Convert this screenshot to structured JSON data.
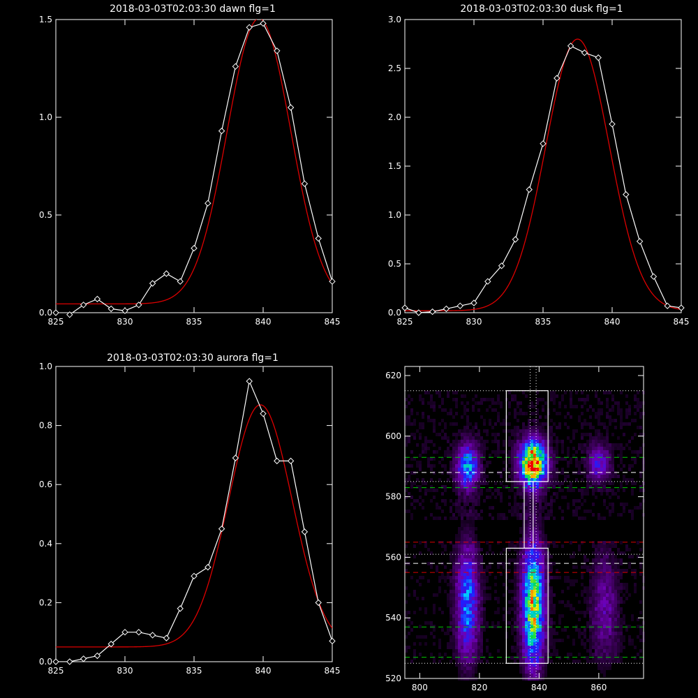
{
  "figure": {
    "colors": {
      "background": "#000000",
      "axes": "#ffffff",
      "data_line": "#ffffff",
      "fit_line": "#dd0000",
      "green_dash": "#00cc00",
      "red_dash": "#dd0000",
      "white_dash": "#ffffff"
    }
  },
  "chart_data": [
    {
      "type": "line",
      "title": "2018-03-03T02:03:30 dawn flg=1",
      "xlabel": "",
      "ylabel": "",
      "xlim": [
        825,
        845
      ],
      "ylim": [
        0,
        1.5
      ],
      "xticks": [
        "825",
        "830",
        "835",
        "840",
        "845"
      ],
      "yticks": [
        "0.0",
        "0.5",
        "1.0",
        "1.5"
      ],
      "series": [
        {
          "marker": "diamond",
          "x": [
            825,
            826,
            827,
            828,
            829,
            830,
            831,
            832,
            833,
            834,
            835,
            836,
            837,
            838,
            839,
            840,
            841,
            842,
            843,
            844,
            845
          ],
          "y": [
            0.0,
            -0.01,
            0.04,
            0.07,
            0.02,
            0.01,
            0.04,
            0.15,
            0.2,
            0.16,
            0.33,
            0.56,
            0.93,
            1.26,
            1.46,
            1.48,
            1.34,
            1.05,
            0.66,
            0.38,
            0.16
          ]
        },
        {
          "marker": "none",
          "fit": {
            "kind": "gaussian",
            "baseline": 0.045,
            "amplitude": 1.46,
            "center": 839.7,
            "sigma": 2.3
          }
        }
      ]
    },
    {
      "type": "line",
      "title": "2018-03-03T02:03:30 dusk flg=1",
      "xlabel": "",
      "ylabel": "",
      "xlim": [
        825,
        845
      ],
      "ylim": [
        0,
        3.0
      ],
      "xticks": [
        "825",
        "830",
        "835",
        "840",
        "845"
      ],
      "yticks": [
        "0.0",
        "0.5",
        "1.0",
        "1.5",
        "2.0",
        "2.5",
        "3.0"
      ],
      "series": [
        {
          "marker": "diamond",
          "x": [
            825,
            826,
            827,
            828,
            829,
            830,
            831,
            832,
            833,
            834,
            835,
            836,
            837,
            838,
            839,
            840,
            841,
            842,
            843,
            844,
            845
          ],
          "y": [
            0.05,
            0.0,
            0.01,
            0.04,
            0.07,
            0.1,
            0.32,
            0.48,
            0.75,
            1.26,
            1.73,
            2.4,
            2.73,
            2.66,
            2.61,
            1.93,
            1.21,
            0.73,
            0.37,
            0.07,
            0.05
          ]
        },
        {
          "marker": "none",
          "fit": {
            "kind": "gaussian",
            "baseline": 0.02,
            "amplitude": 2.78,
            "center": 837.5,
            "sigma": 2.3
          }
        }
      ]
    },
    {
      "type": "line",
      "title": "2018-03-03T02:03:30 aurora flg=1",
      "xlabel": "",
      "ylabel": "",
      "xlim": [
        825,
        845
      ],
      "ylim": [
        0,
        1.0
      ],
      "xticks": [
        "825",
        "830",
        "835",
        "840",
        "845"
      ],
      "yticks": [
        "0.0",
        "0.2",
        "0.4",
        "0.6",
        "0.8",
        "1.0"
      ],
      "series": [
        {
          "marker": "diamond",
          "x": [
            825,
            826,
            827,
            828,
            829,
            830,
            831,
            832,
            833,
            834,
            835,
            836,
            837,
            838,
            839,
            840,
            841,
            842,
            843,
            844,
            845
          ],
          "y": [
            0.0,
            0.0,
            0.01,
            0.02,
            0.06,
            0.1,
            0.1,
            0.09,
            0.08,
            0.18,
            0.29,
            0.32,
            0.45,
            0.69,
            0.95,
            0.84,
            0.68,
            0.68,
            0.44,
            0.2,
            0.07
          ]
        },
        {
          "marker": "none",
          "fit": {
            "kind": "gaussian",
            "baseline": 0.05,
            "amplitude": 0.82,
            "center": 839.8,
            "sigma": 2.3
          }
        }
      ]
    },
    {
      "type": "heatmap",
      "title": "",
      "xlabel": "",
      "ylabel": "",
      "xlim": [
        795,
        875
      ],
      "ylim": [
        520,
        623
      ],
      "xticks": [
        "800",
        "820",
        "840",
        "860"
      ],
      "yticks": [
        "520",
        "540",
        "560",
        "580",
        "600",
        "620"
      ],
      "colormap": "rainbow",
      "blobs": [
        {
          "x": 816,
          "y": 590,
          "intensity": 0.5,
          "sx": 2.5,
          "sy": 5
        },
        {
          "x": 838,
          "y": 591,
          "intensity": 1.0,
          "sx": 3.0,
          "sy": 5
        },
        {
          "x": 860,
          "y": 591,
          "intensity": 0.3,
          "sx": 2.5,
          "sy": 4
        },
        {
          "x": 816,
          "y": 545,
          "intensity": 0.45,
          "sx": 2.5,
          "sy": 13
        },
        {
          "x": 838,
          "y": 544,
          "intensity": 0.75,
          "sx": 2.5,
          "sy": 14
        },
        {
          "x": 862,
          "y": 543,
          "intensity": 0.2,
          "sx": 3.0,
          "sy": 12
        }
      ],
      "boxes": [
        {
          "x0": 829,
          "x1": 843,
          "y0": 585,
          "y1": 615
        },
        {
          "x0": 829,
          "x1": 843,
          "y0": 525,
          "y1": 563
        }
      ],
      "connector": {
        "x0": 835,
        "x1": 838,
        "y0": 563,
        "y1": 585
      },
      "vertical_dotted_x": [
        837,
        839
      ],
      "hlines": [
        {
          "y": 615,
          "style": "dotted",
          "color": "white"
        },
        {
          "y": 593,
          "style": "dashed",
          "color": "green"
        },
        {
          "y": 588,
          "style": "dashed",
          "color": "white"
        },
        {
          "y": 585,
          "style": "dotted",
          "color": "white"
        },
        {
          "y": 583,
          "style": "dashed",
          "color": "green"
        },
        {
          "y": 565,
          "style": "dashed",
          "color": "red"
        },
        {
          "y": 561,
          "style": "dotted",
          "color": "white"
        },
        {
          "y": 558,
          "style": "dashed",
          "color": "white"
        },
        {
          "y": 555,
          "style": "dashed",
          "color": "red"
        },
        {
          "y": 537,
          "style": "dashed",
          "color": "green"
        },
        {
          "y": 527,
          "style": "dashed",
          "color": "green"
        },
        {
          "y": 525,
          "style": "dotted",
          "color": "white"
        }
      ]
    }
  ]
}
